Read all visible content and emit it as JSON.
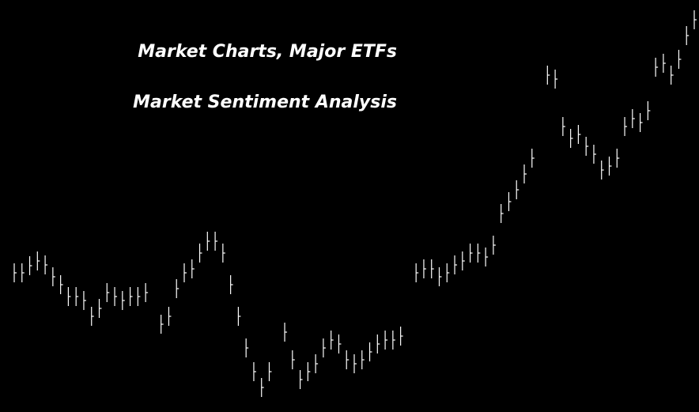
{
  "header": {
    "links": [
      "Market Charts, Major ETFs",
      "Market Sentiment Analysis"
    ]
  },
  "chart_data": {
    "type": "ohlc",
    "color": "#ffffff",
    "ylim": [
      0,
      521
    ],
    "close": [
      176,
      176,
      185,
      191,
      186,
      171,
      161,
      146,
      146,
      141,
      121,
      131,
      151,
      146,
      141,
      146,
      146,
      151,
      null,
      111,
      121,
      156,
      176,
      181,
      201,
      216,
      216,
      201,
      161,
      121,
      81,
      51,
      31,
      51,
      null,
      101,
      66,
      41,
      51,
      61,
      81,
      91,
      86,
      66,
      61,
      66,
      76,
      86,
      91,
      91,
      96,
      null,
      176,
      181,
      181,
      171,
      176,
      186,
      191,
      201,
      201,
      196,
      211,
      251,
      266,
      281,
      301,
      321,
      null,
      426,
      421,
      361,
      346,
      351,
      336,
      326,
      306,
      311,
      321,
      361,
      371,
      366,
      381,
      436,
      441,
      426,
      446,
      476,
      496
    ],
    "high": [
      188,
      188,
      197,
      203,
      198,
      183,
      173,
      158,
      158,
      153,
      133,
      143,
      163,
      158,
      153,
      158,
      158,
      163,
      null,
      123,
      133,
      168,
      188,
      193,
      213,
      228,
      228,
      213,
      173,
      133,
      93,
      63,
      43,
      63,
      null,
      113,
      78,
      53,
      63,
      73,
      93,
      103,
      98,
      78,
      73,
      78,
      88,
      98,
      103,
      103,
      108,
      null,
      188,
      193,
      193,
      183,
      188,
      198,
      203,
      213,
      213,
      208,
      223,
      263,
      278,
      293,
      313,
      333,
      null,
      438,
      433,
      373,
      358,
      363,
      348,
      338,
      318,
      323,
      333,
      373,
      383,
      378,
      393,
      448,
      453,
      438,
      458,
      488,
      508
    ],
    "low": [
      164,
      164,
      173,
      179,
      174,
      159,
      149,
      134,
      134,
      129,
      109,
      119,
      139,
      134,
      129,
      134,
      134,
      139,
      null,
      99,
      109,
      144,
      164,
      169,
      189,
      204,
      204,
      189,
      149,
      109,
      69,
      39,
      19,
      39,
      null,
      89,
      54,
      29,
      39,
      49,
      69,
      79,
      74,
      54,
      49,
      54,
      64,
      74,
      79,
      79,
      84,
      null,
      164,
      169,
      169,
      159,
      164,
      174,
      179,
      189,
      189,
      184,
      199,
      239,
      254,
      269,
      289,
      309,
      null,
      414,
      409,
      349,
      334,
      339,
      324,
      314,
      294,
      299,
      309,
      349,
      359,
      354,
      369,
      424,
      429,
      414,
      434,
      464,
      484
    ]
  }
}
